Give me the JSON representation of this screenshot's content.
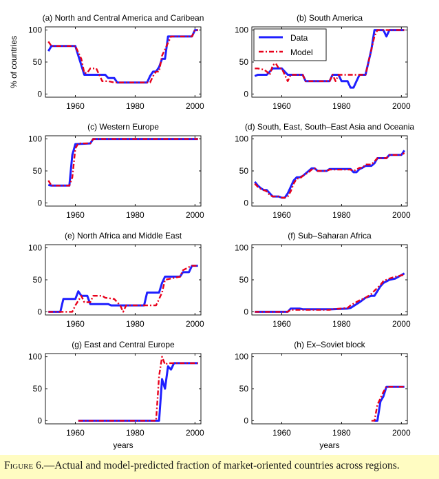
{
  "figure": {
    "caption_label": "Figure 6.",
    "caption_text": "—Actual and model-predicted fraction of market-oriented countries across regions.",
    "ylabel": "% of countries",
    "xlabel": "years",
    "legend": {
      "data": "Data",
      "model": "Model"
    }
  },
  "colors": {
    "data": "#1f1fff",
    "model": "#e8001a",
    "caption_bg": "#fffcc2"
  },
  "chart_data": [
    {
      "type": "line",
      "title": "(a) North and Central America and Caribean",
      "xlim": [
        1950,
        2002
      ],
      "ylim": [
        -5,
        105
      ],
      "xticks": [
        1960,
        1980,
        2000
      ],
      "yticks": [
        0,
        50,
        100
      ],
      "series": [
        {
          "name": "Data",
          "x": [
            1951,
            1952,
            1960,
            1961,
            1962,
            1963,
            1970,
            1971,
            1972,
            1973,
            1974,
            1984,
            1985,
            1986,
            1987,
            1988,
            1989,
            1990,
            1991,
            1999,
            2000,
            2001
          ],
          "y": [
            67,
            75,
            75,
            60,
            45,
            30,
            30,
            25,
            25,
            25,
            18,
            18,
            28,
            35,
            35,
            42,
            55,
            55,
            90,
            90,
            100,
            100
          ]
        },
        {
          "name": "Model",
          "x": [
            1951,
            1952,
            1960,
            1962,
            1963,
            1964,
            1965,
            1966,
            1967,
            1968,
            1969,
            1971,
            1973,
            1985,
            1986,
            1987,
            1988,
            1989,
            1990,
            1991,
            1992,
            1999,
            2000,
            2001
          ],
          "y": [
            82,
            75,
            75,
            55,
            33,
            33,
            40,
            40,
            40,
            30,
            20,
            20,
            18,
            18,
            28,
            35,
            35,
            60,
            70,
            80,
            90,
            90,
            100,
            100
          ]
        }
      ]
    },
    {
      "type": "line",
      "title": "(b) South America",
      "xlim": [
        1950,
        2002
      ],
      "ylim": [
        -5,
        105
      ],
      "xticks": [
        1960,
        1980,
        2000
      ],
      "yticks": [
        0,
        50,
        100
      ],
      "legend": "top-left",
      "series": [
        {
          "name": "Data",
          "x": [
            1951,
            1952,
            1955,
            1956,
            1957,
            1960,
            1961,
            1962,
            1967,
            1968,
            1976,
            1977,
            1979,
            1980,
            1982,
            1983,
            1984,
            1985,
            1986,
            1987,
            1988,
            1989,
            1990,
            1991,
            1994,
            1995,
            1996,
            2001
          ],
          "y": [
            28,
            30,
            30,
            35,
            40,
            40,
            35,
            30,
            30,
            20,
            20,
            30,
            30,
            20,
            20,
            10,
            10,
            20,
            30,
            30,
            30,
            50,
            70,
            100,
            100,
            90,
            100,
            100
          ]
        },
        {
          "name": "Model",
          "x": [
            1951,
            1952,
            1954,
            1955,
            1956,
            1957,
            1958,
            1959,
            1960,
            1961,
            1962,
            1963,
            1964,
            1966,
            1967,
            1968,
            1976,
            1977,
            1978,
            1979,
            1980,
            1987,
            1988,
            1989,
            1990,
            1991,
            1992,
            2001
          ],
          "y": [
            40,
            40,
            38,
            35,
            30,
            45,
            48,
            40,
            40,
            30,
            20,
            30,
            30,
            30,
            30,
            20,
            20,
            30,
            20,
            30,
            30,
            30,
            30,
            50,
            70,
            90,
            100,
            100
          ]
        }
      ]
    },
    {
      "type": "line",
      "title": "(c) Western Europe",
      "xlim": [
        1950,
        2002
      ],
      "ylim": [
        -5,
        105
      ],
      "xticks": [
        1960,
        1980,
        2000
      ],
      "yticks": [
        0,
        50,
        100
      ],
      "series": [
        {
          "name": "Data",
          "x": [
            1951,
            1952,
            1958,
            1959,
            1960,
            1965,
            1966,
            2001
          ],
          "y": [
            28,
            27,
            27,
            75,
            92,
            93,
            100,
            100
          ]
        },
        {
          "name": "Model",
          "x": [
            1951,
            1952,
            1958,
            1959,
            1960,
            1961,
            1965,
            1966,
            2001
          ],
          "y": [
            35,
            27,
            27,
            40,
            85,
            93,
            93,
            100,
            100
          ]
        }
      ]
    },
    {
      "type": "line",
      "title": "(d) South, East, South–East Asia and Oceania",
      "xlim": [
        1950,
        2002
      ],
      "ylim": [
        -5,
        105
      ],
      "xticks": [
        1960,
        1980,
        2000
      ],
      "yticks": [
        0,
        50,
        100
      ],
      "series": [
        {
          "name": "Data",
          "x": [
            1951,
            1952,
            1953,
            1954,
            1955,
            1956,
            1957,
            1959,
            1960,
            1961,
            1962,
            1963,
            1964,
            1965,
            1966,
            1967,
            1968,
            1969,
            1970,
            1971,
            1972,
            1975,
            1976,
            1983,
            1984,
            1985,
            1986,
            1987,
            1988,
            1990,
            1991,
            1992,
            1995,
            1996,
            2000,
            2001
          ],
          "y": [
            33,
            27,
            23,
            20,
            20,
            15,
            10,
            10,
            8,
            8,
            15,
            25,
            35,
            40,
            40,
            42,
            46,
            50,
            54,
            54,
            50,
            50,
            53,
            53,
            48,
            48,
            53,
            55,
            58,
            58,
            62,
            70,
            70,
            75,
            75,
            82
          ]
        },
        {
          "name": "Model",
          "x": [
            1951,
            1952,
            1953,
            1954,
            1955,
            1956,
            1957,
            1959,
            1960,
            1961,
            1962,
            1963,
            1964,
            1965,
            1966,
            1967,
            1968,
            1969,
            1970,
            1971,
            1972,
            1975,
            1976,
            1983,
            1984,
            1985,
            1986,
            1987,
            1988,
            1990,
            1991,
            1992,
            1995,
            1996,
            2000,
            2001
          ],
          "y": [
            30,
            25,
            22,
            20,
            18,
            12,
            10,
            10,
            8,
            8,
            10,
            18,
            30,
            38,
            38,
            42,
            45,
            48,
            52,
            54,
            50,
            50,
            52,
            52,
            50,
            52,
            55,
            55,
            60,
            60,
            65,
            70,
            70,
            75,
            75,
            78
          ]
        }
      ]
    },
    {
      "type": "line",
      "title": "(e) North Africa and Middle East",
      "xlim": [
        1950,
        2002
      ],
      "ylim": [
        -5,
        105
      ],
      "xticks": [
        1960,
        1980,
        2000
      ],
      "yticks": [
        0,
        50,
        100
      ],
      "series": [
        {
          "name": "Data",
          "x": [
            1951,
            1955,
            1956,
            1960,
            1961,
            1962,
            1964,
            1965,
            1971,
            1972,
            1983,
            1984,
            1988,
            1989,
            1990,
            1995,
            1996,
            1998,
            1999,
            2001
          ],
          "y": [
            0,
            0,
            20,
            20,
            32,
            25,
            25,
            12,
            12,
            10,
            10,
            30,
            30,
            45,
            55,
            55,
            62,
            62,
            72,
            72
          ]
        },
        {
          "name": "Model",
          "x": [
            1951,
            1959,
            1960,
            1962,
            1963,
            1965,
            1966,
            1969,
            1970,
            1973,
            1975,
            1976,
            1977,
            1987,
            1988,
            1989,
            1990,
            1995,
            1996,
            1998,
            1999,
            2001
          ],
          "y": [
            0,
            0,
            10,
            25,
            15,
            15,
            25,
            25,
            22,
            20,
            10,
            0,
            10,
            10,
            20,
            30,
            50,
            55,
            65,
            70,
            72,
            72
          ]
        }
      ]
    },
    {
      "type": "line",
      "title": "(f) Sub–Saharan Africa",
      "xlim": [
        1950,
        2002
      ],
      "ylim": [
        -5,
        105
      ],
      "xticks": [
        1960,
        1980,
        2000
      ],
      "yticks": [
        0,
        50,
        100
      ],
      "series": [
        {
          "name": "Data",
          "x": [
            1951,
            1962,
            1963,
            1966,
            1967,
            1976,
            1977,
            1982,
            1983,
            1986,
            1988,
            1990,
            1991,
            1993,
            1994,
            1996,
            1998,
            2001
          ],
          "y": [
            0,
            0,
            5,
            5,
            4,
            4,
            4,
            5,
            6,
            15,
            22,
            25,
            25,
            40,
            45,
            50,
            52,
            60
          ]
        },
        {
          "name": "Model",
          "x": [
            1951,
            1962,
            1963,
            1966,
            1967,
            1976,
            1977,
            1982,
            1983,
            1986,
            1988,
            1990,
            1991,
            1993,
            1994,
            1996,
            1998,
            2001
          ],
          "y": [
            0,
            0,
            3,
            3,
            3,
            3,
            4,
            6,
            10,
            18,
            22,
            28,
            33,
            42,
            48,
            52,
            55,
            58
          ]
        }
      ]
    },
    {
      "type": "line",
      "title": "(g) East and Central Europe",
      "xlim": [
        1950,
        2002
      ],
      "ylim": [
        -5,
        105
      ],
      "xticks": [
        1960,
        1980,
        2000
      ],
      "yticks": [
        0,
        50,
        100
      ],
      "series": [
        {
          "name": "Data",
          "x": [
            1961,
            1988,
            1989,
            1990,
            1991,
            1992,
            1993,
            1994,
            2001
          ],
          "y": [
            0,
            0,
            65,
            50,
            85,
            80,
            90,
            90,
            90
          ]
        },
        {
          "name": "Model",
          "x": [
            1961,
            1987,
            1988,
            1989,
            1990,
            1991,
            1992,
            2001
          ],
          "y": [
            0,
            0,
            70,
            100,
            88,
            90,
            90,
            90
          ]
        }
      ]
    },
    {
      "type": "line",
      "title": "(h) Ex–Soviet block",
      "xlim": [
        1950,
        2002
      ],
      "ylim": [
        -5,
        105
      ],
      "xticks": [
        1960,
        1980,
        2000
      ],
      "yticks": [
        0,
        50,
        100
      ],
      "series": [
        {
          "name": "Data",
          "x": [
            1991,
            1992,
            1993,
            1994,
            1995,
            1996,
            2001
          ],
          "y": [
            0,
            0,
            30,
            38,
            53,
            53,
            53
          ]
        },
        {
          "name": "Model",
          "x": [
            1990,
            1991,
            1992,
            1993,
            1994,
            1995,
            1996,
            2001
          ],
          "y": [
            0,
            0,
            25,
            35,
            45,
            53,
            53,
            53
          ]
        }
      ]
    }
  ]
}
